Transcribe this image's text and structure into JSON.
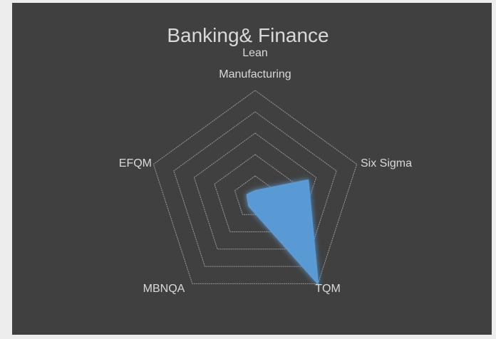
{
  "chart_data": {
    "type": "radar",
    "title": "Banking& Finance",
    "categories": [
      "Lean Manufacturing",
      "Six Sigma",
      "TQM",
      "MBNQA",
      "EFQM"
    ],
    "series": [
      {
        "name": "Banking& Finance",
        "color": "#5b9bd5",
        "values": [
          0.3,
          2.6,
          5,
          0.5,
          0.4
        ]
      }
    ],
    "rlim": [
      0,
      5
    ],
    "rticks": [
      1,
      2,
      3,
      4,
      5
    ],
    "grid": true
  }
}
